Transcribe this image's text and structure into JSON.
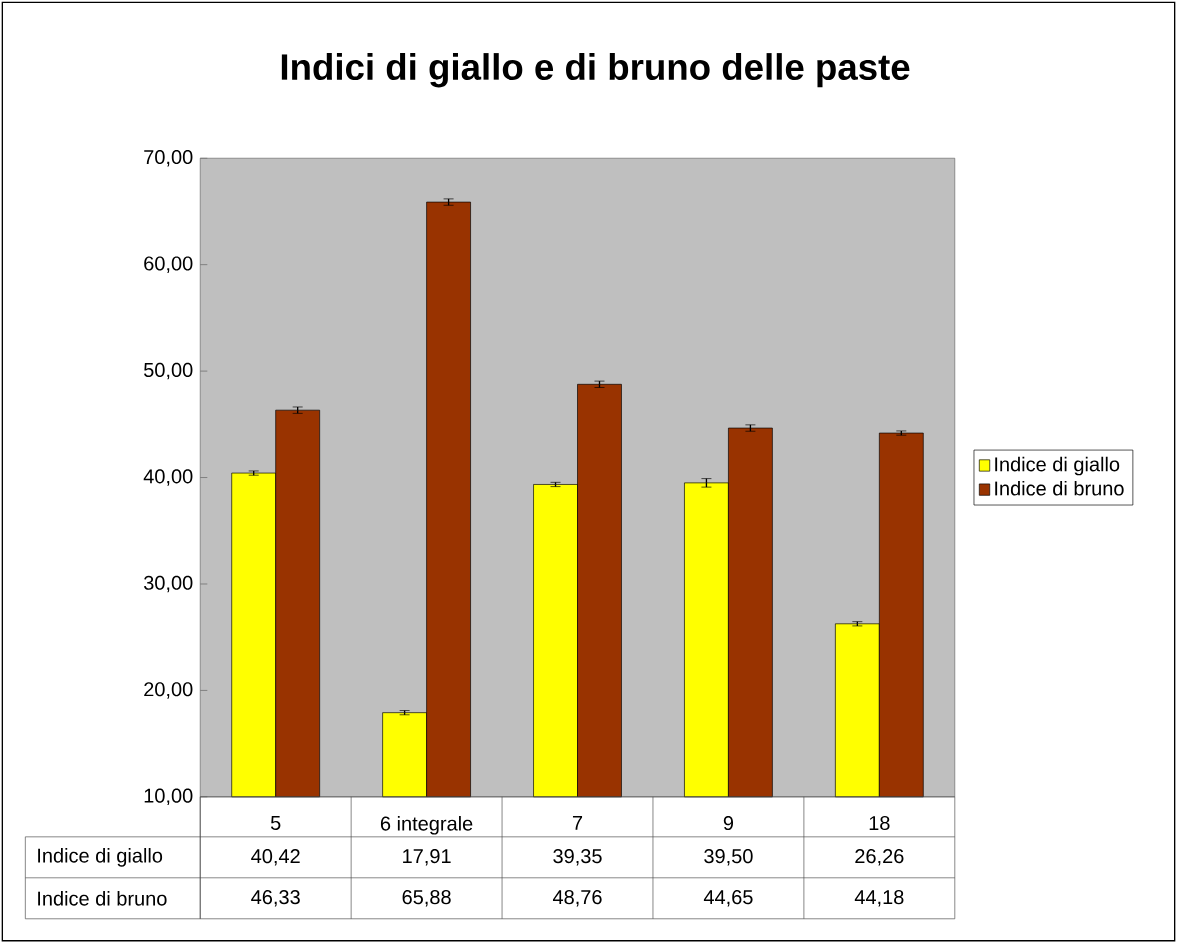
{
  "chart_data": {
    "type": "bar",
    "title": "Indici di giallo e di bruno delle paste",
    "categories": [
      "5",
      "6 integrale",
      "7",
      "9",
      "18"
    ],
    "series": [
      {
        "name": "Indice di giallo",
        "color": "#ffff00",
        "values": [
          40.42,
          17.91,
          39.35,
          39.5,
          26.26
        ],
        "value_labels": [
          "40,42",
          "17,91",
          "39,35",
          "39,50",
          "26,26"
        ],
        "errors": [
          0.2,
          0.2,
          0.2,
          0.4,
          0.2
        ]
      },
      {
        "name": "Indice di bruno",
        "color": "#993300",
        "values": [
          46.33,
          65.88,
          48.76,
          44.65,
          44.18
        ],
        "value_labels": [
          "46,33",
          "65,88",
          "48,76",
          "44,65",
          "44,18"
        ],
        "errors": [
          0.3,
          0.3,
          0.3,
          0.3,
          0.2
        ]
      }
    ],
    "ylim": [
      10,
      70
    ],
    "yticks": [
      {
        "value": 10,
        "label": "10,00"
      },
      {
        "value": 20,
        "label": "20,00"
      },
      {
        "value": 30,
        "label": "30,00"
      },
      {
        "value": 40,
        "label": "40,00"
      },
      {
        "value": 50,
        "label": "50,00"
      },
      {
        "value": 60,
        "label": "60,00"
      },
      {
        "value": 70,
        "label": "70,00"
      }
    ],
    "grid": false,
    "legend": "right"
  }
}
